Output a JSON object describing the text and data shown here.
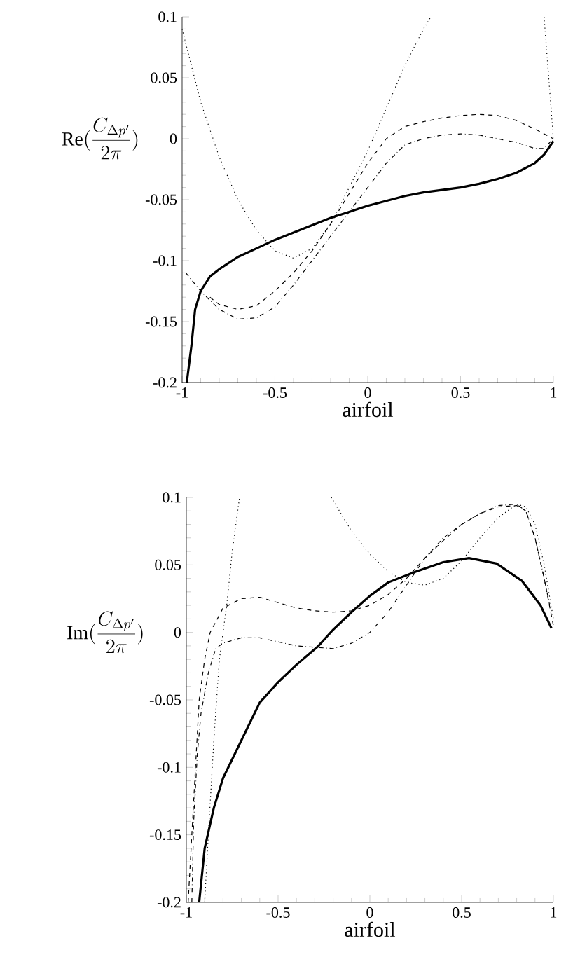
{
  "chart_data": [
    {
      "type": "line",
      "xlabel": "airfoil",
      "ylabel": "\\mathrm{Re}(\\frac{C_{\\Delta p'}}{2\\pi})",
      "xlim": [
        -1,
        1
      ],
      "ylim": [
        -0.2,
        0.1
      ],
      "xticks": [
        -1,
        -0.5,
        0,
        0.5,
        1
      ],
      "yticks": [
        -0.2,
        -0.15,
        -0.1,
        -0.05,
        0,
        0.05,
        0.1
      ],
      "series": [
        {
          "color": "#000000",
          "line_style": "solid",
          "x": [
            -0.975,
            -0.95,
            -0.93,
            -0.9,
            -0.85,
            -0.8,
            -0.7,
            -0.6,
            -0.5,
            -0.4,
            -0.3,
            -0.2,
            -0.1,
            0,
            0.1,
            0.2,
            0.3,
            0.4,
            0.5,
            0.6,
            0.7,
            0.8,
            0.9,
            0.95,
            1.0
          ],
          "values": [
            -0.2,
            -0.17,
            -0.14,
            -0.125,
            -0.113,
            -0.107,
            -0.097,
            -0.09,
            -0.083,
            -0.077,
            -0.071,
            -0.065,
            -0.06,
            -0.055,
            -0.051,
            -0.047,
            -0.044,
            -0.042,
            -0.04,
            -0.037,
            -0.033,
            -0.028,
            -0.02,
            -0.013,
            -0.002
          ]
        },
        {
          "color": "#000000",
          "line_style": "dashed",
          "x": [
            -0.85,
            -0.8,
            -0.7,
            -0.6,
            -0.5,
            -0.4,
            -0.3,
            -0.2,
            -0.1,
            0,
            0.1,
            0.2,
            0.3,
            0.4,
            0.5,
            0.6,
            0.7,
            0.8,
            0.9,
            1.0
          ],
          "values": [
            -0.13,
            -0.136,
            -0.14,
            -0.137,
            -0.125,
            -0.11,
            -0.092,
            -0.07,
            -0.045,
            -0.02,
            0.0,
            0.01,
            0.014,
            0.017,
            0.019,
            0.02,
            0.019,
            0.015,
            0.008,
            0.0
          ]
        },
        {
          "color": "#000000",
          "line_style": "dashdot",
          "x": [
            -0.98,
            -0.9,
            -0.8,
            -0.7,
            -0.6,
            -0.5,
            -0.4,
            -0.3,
            -0.2,
            -0.1,
            0,
            0.1,
            0.2,
            0.3,
            0.4,
            0.5,
            0.6,
            0.7,
            0.8,
            0.9,
            0.95,
            1.0
          ],
          "values": [
            -0.11,
            -0.125,
            -0.14,
            -0.148,
            -0.147,
            -0.138,
            -0.12,
            -0.1,
            -0.08,
            -0.06,
            -0.04,
            -0.02,
            -0.005,
            0.0,
            0.003,
            0.004,
            0.003,
            0.0,
            -0.003,
            -0.008,
            -0.008,
            0.0
          ]
        },
        {
          "color": "#000000",
          "line_style": "dotted",
          "x": [
            -1,
            -0.9,
            -0.8,
            -0.7,
            -0.6,
            -0.5,
            -0.4,
            -0.3,
            -0.2,
            -0.1,
            0,
            0.1,
            0.2,
            0.3,
            0.34,
            0.6,
            0.95,
            0.97,
            0.99,
            1.0
          ],
          "values": [
            0.09,
            0.03,
            -0.015,
            -0.05,
            -0.075,
            -0.092,
            -0.098,
            -0.09,
            -0.07,
            -0.04,
            -0.01,
            0.025,
            0.06,
            0.09,
            0.1,
            null,
            0.1,
            0.06,
            0.02,
            0.0
          ]
        }
      ]
    },
    {
      "type": "line",
      "xlabel": "airfoil",
      "ylabel": "\\mathrm{Im}(\\frac{C_{\\Delta p'}}{2\\pi})",
      "xlim": [
        -1,
        1
      ],
      "ylim": [
        -0.2,
        0.1
      ],
      "xticks": [
        -1,
        -0.5,
        0,
        0.5,
        1
      ],
      "yticks": [
        -0.2,
        -0.15,
        -0.1,
        -0.05,
        0,
        0.05,
        0.1
      ],
      "series": [
        {
          "color": "#000000",
          "line_style": "solid",
          "x": [
            -0.93,
            -0.9,
            -0.85,
            -0.8,
            -0.7,
            -0.6,
            -0.5,
            -0.4,
            -0.28,
            -0.2,
            -0.1,
            0,
            0.1,
            0.25,
            0.4,
            0.54,
            0.69,
            0.83,
            0.93,
            0.99
          ],
          "values": [
            -0.2,
            -0.16,
            -0.13,
            -0.108,
            -0.08,
            -0.052,
            -0.037,
            -0.024,
            -0.01,
            0.002,
            0.015,
            0.027,
            0.037,
            0.045,
            0.052,
            0.055,
            0.051,
            0.038,
            0.02,
            0.003
          ]
        },
        {
          "color": "#000000",
          "line_style": "dashed",
          "x": [
            -0.99,
            -0.97,
            -0.95,
            -0.93,
            -0.9,
            -0.87,
            -0.8,
            -0.7,
            -0.6,
            -0.5,
            -0.4,
            -0.3,
            -0.2,
            -0.1,
            0,
            0.1,
            0.2,
            0.3,
            0.4,
            0.5,
            0.6,
            0.7,
            0.8,
            0.85,
            0.9,
            0.95,
            1.0
          ],
          "values": [
            -0.2,
            -0.15,
            -0.1,
            -0.05,
            -0.02,
            0.0,
            0.018,
            0.025,
            0.026,
            0.022,
            0.018,
            0.016,
            0.015,
            0.016,
            0.02,
            0.028,
            0.04,
            0.055,
            0.068,
            0.08,
            0.088,
            0.093,
            0.094,
            0.09,
            0.07,
            0.04,
            0.005
          ]
        },
        {
          "color": "#000000",
          "line_style": "dashdot",
          "x": [
            -0.97,
            -0.96,
            -0.94,
            -0.92,
            -0.88,
            -0.84,
            -0.8,
            -0.7,
            -0.6,
            -0.5,
            -0.4,
            -0.3,
            -0.2,
            -0.1,
            0,
            0.1,
            0.2,
            0.3,
            0.4,
            0.5,
            0.6,
            0.7,
            0.8,
            0.85,
            0.9,
            0.95,
            0.98
          ],
          "values": [
            -0.2,
            -0.14,
            -0.09,
            -0.06,
            -0.03,
            -0.012,
            -0.008,
            -0.004,
            -0.004,
            -0.007,
            -0.01,
            -0.011,
            -0.012,
            -0.008,
            0.0,
            0.015,
            0.035,
            0.055,
            0.07,
            0.08,
            0.088,
            0.094,
            0.095,
            0.09,
            0.07,
            0.04,
            0.02
          ]
        },
        {
          "color": "#000000",
          "line_style": "dotted",
          "x": [
            -0.9,
            -0.88,
            -0.85,
            -0.82,
            -0.78,
            -0.75,
            -0.71,
            -0.5,
            -0.21,
            -0.1,
            0,
            0.1,
            0.2,
            0.3,
            0.4,
            0.5,
            0.6,
            0.7,
            0.8,
            0.85,
            0.9,
            0.95,
            1.0
          ],
          "values": [
            -0.2,
            -0.15,
            -0.08,
            -0.02,
            0.02,
            0.06,
            0.1,
            null,
            0.1,
            0.075,
            0.058,
            0.045,
            0.037,
            0.035,
            0.04,
            0.053,
            0.07,
            0.085,
            0.095,
            0.093,
            0.08,
            0.05,
            0.01
          ]
        }
      ]
    }
  ]
}
